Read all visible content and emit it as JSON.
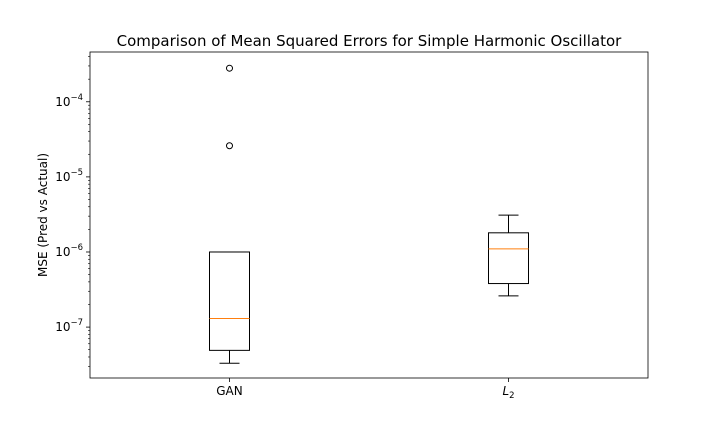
{
  "chart_data": {
    "type": "box",
    "title": "Comparison of Mean Squared Errors for Simple Harmonic Oscillator",
    "xlabel": "",
    "ylabel": "MSE (Pred vs Actual)",
    "yscale": "log",
    "ylim": [
      2.1e-08,
      0.00046
    ],
    "yticks": [
      {
        "value": 1e-07,
        "base": "10",
        "exp": "−7"
      },
      {
        "value": 1e-06,
        "base": "10",
        "exp": "−6"
      },
      {
        "value": 1e-05,
        "base": "10",
        "exp": "−5"
      },
      {
        "value": 0.0001,
        "base": "10",
        "exp": "−4"
      }
    ],
    "categories": [
      {
        "label": "GAN",
        "base": "",
        "sub": ""
      },
      {
        "label": "",
        "base": "L",
        "sub": "2"
      }
    ],
    "boxes": [
      {
        "whisker_low": 3.3e-08,
        "q1": 4.9e-08,
        "median": 1.3e-07,
        "q3": 1e-06,
        "whisker_high": 1e-06,
        "outliers": [
          2.6e-05,
          0.00028
        ]
      },
      {
        "whisker_low": 2.6e-07,
        "q1": 3.8e-07,
        "median": 1.1e-06,
        "q3": 1.8e-06,
        "whisker_high": 3.1e-06,
        "outliers": []
      }
    ],
    "colors": {
      "box": "#000000",
      "median": "#ff7f0e",
      "outlier": "#000000"
    },
    "grid": false,
    "legend": "none"
  }
}
